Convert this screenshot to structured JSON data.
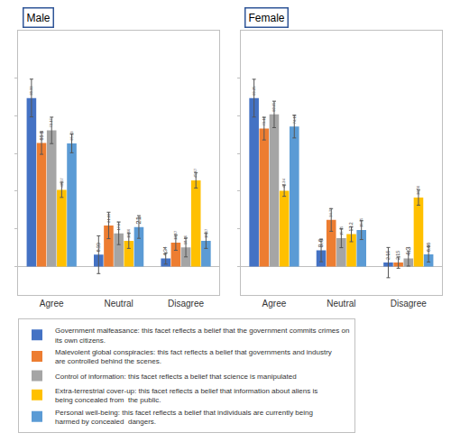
{
  "chart_data": [
    {
      "type": "bar",
      "title": "Male",
      "categories": [
        "Agree",
        "Neutral",
        "Disagree"
      ],
      "series": [
        {
          "name": "Government malfeasance: this facet reflects a belief that the government commits crimes on its own citizens.",
          "color": "#4472c4",
          "values": [
            89.33,
            6.33,
            4.34
          ],
          "errors": [
            10,
            10,
            3
          ]
        },
        {
          "name": "Malevolent global conspiracies: this fact reflects a belief that governments and industry are controlled behind the scenes.",
          "color": "#ed7d31",
          "values": [
            65.5,
            21.83,
            12.67
          ],
          "errors": [
            6,
            7,
            4
          ]
        },
        {
          "name": "Control of information: this facet reflects a belief that science is manipulated",
          "color": "#a5a5a5",
          "values": [
            72.17,
            17.67,
            10.16
          ],
          "errors": [
            7,
            6,
            5
          ]
        },
        {
          "name": "Extra-terrestrial cover-up: this facet reflects a belief that information about aliens is being concealed from  the public.",
          "color": "#ffc000",
          "values": [
            40.67,
            13.66,
            45.67
          ],
          "errors": [
            4,
            4,
            4
          ]
        },
        {
          "name": "Personal well-being: this facet reflects a belief that individuals are currently being harmed by concealed  dangers.",
          "color": "#5b9bd5",
          "values": [
            65.33,
            21,
            13.67
          ],
          "errors": [
            5,
            6,
            4
          ]
        }
      ],
      "ylim": [
        -15,
        125
      ],
      "yticks": [
        0,
        20,
        40,
        60,
        80,
        100
      ],
      "grid": false,
      "data_labels": true,
      "tick_labels": "x",
      "legend": "bottom"
    },
    {
      "type": "bar",
      "title": "Female",
      "categories": [
        "Agree",
        "Neutral",
        "Disagree"
      ],
      "series": [
        {
          "name": "Government malfeasance: this facet reflects a belief that the government commits crimes on its own citizens.",
          "color": "#4472c4",
          "values": [
            89.25,
            8.6,
            2.15
          ],
          "errors": [
            10,
            6,
            8
          ]
        },
        {
          "name": "Malevolent global conspiracies: this fact reflects a belief that governments and industry are controlled behind the scenes.",
          "color": "#ed7d31",
          "values": [
            73.12,
            24.73,
            2.15
          ],
          "errors": [
            6,
            6,
            3
          ]
        },
        {
          "name": "Control of information: this facet reflects a belief that science is manipulated",
          "color": "#a5a5a5",
          "values": [
            80.65,
            15.05,
            4.3
          ],
          "errors": [
            7,
            5,
            4
          ]
        },
        {
          "name": "Extra-terrestrial cover-up: this facet reflects a belief that information about aliens is being concealed from  the public.",
          "color": "#ffc000",
          "values": [
            40.24,
            17.2,
            36.56
          ],
          "errors": [
            3,
            4,
            4
          ]
        },
        {
          "name": "Personal well-being: this facet reflects a belief that individuals are currently being harmed by concealed  dangers.",
          "color": "#5b9bd5",
          "values": [
            74.19,
            19.35,
            6.46
          ],
          "errors": [
            6,
            5,
            4
          ]
        }
      ],
      "ylim": [
        -15,
        125
      ],
      "yticks": [
        0,
        20,
        40,
        60,
        80,
        100
      ],
      "grid": false,
      "data_labels": true,
      "tick_labels": "x",
      "legend": "bottom"
    }
  ]
}
